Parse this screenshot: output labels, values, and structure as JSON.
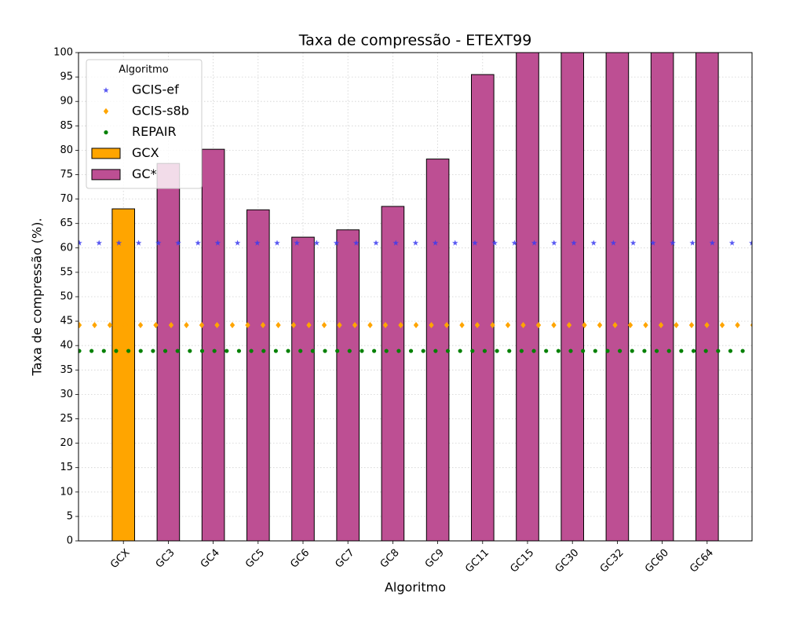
{
  "chart_data": {
    "type": "bar",
    "title": "Taxa de compressão -  ETEXT99",
    "xlabel": "Algoritmo",
    "ylabel": "Taxa de compressão (%).",
    "categories": [
      "GCX",
      "GC3",
      "GC4",
      "GC5",
      "GC6",
      "GC7",
      "GC8",
      "GC9",
      "GC11",
      "GC15",
      "GC30",
      "GC32",
      "GC60",
      "GC64"
    ],
    "series": [
      {
        "name": "GCX",
        "color": "#ffa500",
        "values": [
          68.0,
          null,
          null,
          null,
          null,
          null,
          null,
          null,
          null,
          null,
          null,
          null,
          null,
          null
        ]
      },
      {
        "name": "GC*",
        "color": "#bd4f93",
        "values": [
          null,
          77.3,
          80.2,
          67.8,
          62.2,
          63.7,
          68.5,
          78.2,
          95.5,
          100,
          100,
          100,
          100,
          100
        ]
      }
    ],
    "reference_lines": [
      {
        "name": "GCIS-ef",
        "color": "#3b3bf0",
        "marker": "star",
        "value": 61.0
      },
      {
        "name": "GCIS-s8b",
        "color": "#ffa500",
        "marker": "diamond",
        "value": 44.2
      },
      {
        "name": "REPAIR",
        "color": "#008000",
        "marker": "circle",
        "value": 38.9
      }
    ],
    "legend_title": "Algoritmo",
    "legend": "upper left",
    "grid": true,
    "xlim": [
      -1,
      14
    ],
    "ylim": [
      0,
      100
    ],
    "yticks": [
      0,
      5,
      10,
      15,
      20,
      25,
      30,
      35,
      40,
      45,
      50,
      55,
      60,
      65,
      70,
      75,
      80,
      85,
      90,
      95,
      100
    ]
  }
}
